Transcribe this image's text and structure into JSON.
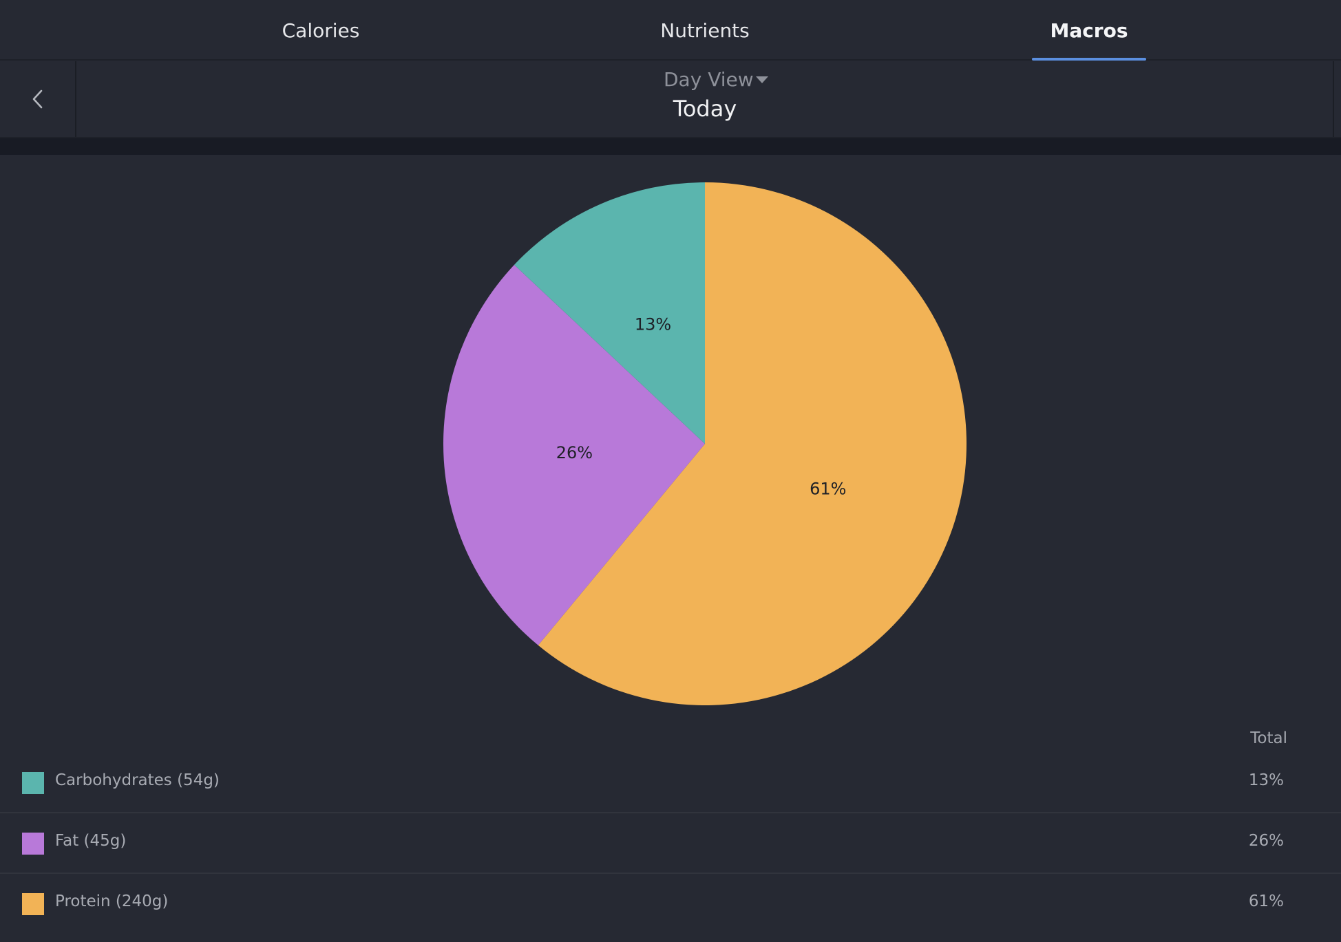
{
  "tabs": [
    {
      "label": "Calories",
      "active": false
    },
    {
      "label": "Nutrients",
      "active": false
    },
    {
      "label": "Macros",
      "active": true
    }
  ],
  "header": {
    "view_label": "Day View",
    "date_label": "Today"
  },
  "icons": {
    "back": "chevron-left-icon",
    "view_dropdown": "caret-down-icon"
  },
  "legend": {
    "total_header": "Total",
    "rows": [
      {
        "label": "Carbohydrates (54g)",
        "percent": "13%",
        "color": "#5bb5ae"
      },
      {
        "label": "Fat (45g)",
        "percent": "26%",
        "color": "#b879d9"
      },
      {
        "label": "Protein (240g)",
        "percent": "61%",
        "color": "#f2b356"
      }
    ]
  },
  "chart_data": {
    "type": "pie",
    "categories": [
      "Protein",
      "Fat",
      "Carbohydrates"
    ],
    "values": [
      61,
      26,
      13
    ],
    "labels": [
      "61%",
      "26%",
      "13%"
    ],
    "colors": [
      "#f2b356",
      "#b879d9",
      "#5bb5ae"
    ],
    "start": "top",
    "direction": "clockwise"
  }
}
